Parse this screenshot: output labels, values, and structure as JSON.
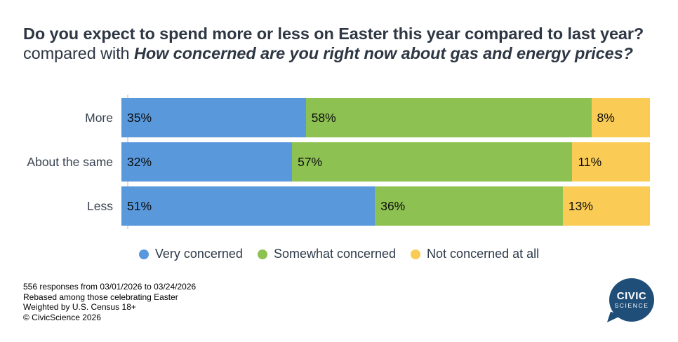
{
  "title": {
    "question_bold": "Do you expect to spend more or less on Easter this year compared to last year?",
    "connector": " compared with ",
    "question_bold_italic": "How concerned are you right now about gas and energy prices?"
  },
  "chart_data": {
    "type": "bar",
    "subtype": "stacked-100-horizontal",
    "categories": [
      "More",
      "About the same",
      "Less"
    ],
    "series": [
      {
        "name": "Very concerned",
        "color": "#5898DB",
        "values": [
          35,
          32,
          51
        ]
      },
      {
        "name": "Somewhat concerned",
        "color": "#8DC152",
        "values": [
          58,
          57,
          36
        ]
      },
      {
        "name": "Not concerned at all",
        "color": "#FACC55",
        "values": [
          8,
          11,
          13
        ]
      }
    ],
    "value_suffix": "%",
    "legend_position": "bottom-center",
    "grid": "off",
    "axis_line_color": "#DCDCDC"
  },
  "footer": {
    "lines": [
      "556 responses from 03/01/2026 to 03/24/2026",
      "Rebased among those celebrating Easter",
      "Weighted by U.S. Census 18+",
      "© CivicScience 2026"
    ]
  },
  "logo": {
    "line1": "CIVIC",
    "line2": "SCIENCE",
    "bubble_color": "#1F4E79"
  }
}
